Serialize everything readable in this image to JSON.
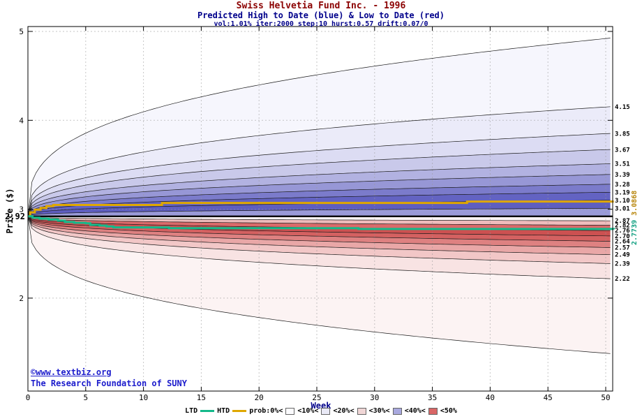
{
  "header": {
    "title": "Swiss Helvetia Fund Inc. - 1996",
    "subtitle": "Predicted High to Date (blue) &  Low to Date (red)",
    "params": "vol:1.01% iter:2000 step:10 hurst:0.57 drift:0.07/0"
  },
  "watermark": {
    "line1": "©www.textbiz.org",
    "line2": "The Research Foundation of SUNY",
    "color": "#1c1ccc"
  },
  "legend": {
    "items": [
      {
        "type": "text",
        "label": "LTD"
      },
      {
        "type": "line",
        "name": "ltd-line-swatch",
        "color": "#14b98a"
      },
      {
        "type": "text",
        "label": "HTD"
      },
      {
        "type": "line",
        "name": "htd-line-swatch",
        "color": "#dfa700"
      },
      {
        "type": "text",
        "label": "prob:0%<"
      },
      {
        "type": "swatch",
        "name": "prob-swatch-10",
        "color": "#fbfbfe"
      },
      {
        "type": "text",
        "label": "<10%<"
      },
      {
        "type": "swatch",
        "name": "prob-swatch-20",
        "color": "#e9e9f6"
      },
      {
        "type": "text",
        "label": "<20%<"
      },
      {
        "type": "swatch",
        "name": "prob-swatch-30",
        "color": "#f0d6d6"
      },
      {
        "type": "text",
        "label": "<30%<"
      },
      {
        "type": "swatch",
        "name": "prob-swatch-40",
        "color": "#a9a9df"
      },
      {
        "type": "text",
        "label": "<40%<"
      },
      {
        "type": "swatch",
        "name": "prob-swatch-50",
        "color": "#d96666"
      },
      {
        "type": "text",
        "label": "<50%"
      }
    ]
  },
  "chart_data": {
    "type": "area",
    "title": "Swiss Helvetia Fund Inc. - 1996",
    "subtitle": "Predicted High to Date (blue) & Low to Date (red)",
    "x": {
      "label": "Week",
      "min": 0,
      "max": 50,
      "ticks": [
        0,
        5,
        10,
        15,
        20,
        25,
        30,
        35,
        40,
        45,
        50
      ]
    },
    "y": {
      "label": "Price ($)",
      "ticks": [
        2,
        3,
        4,
        5
      ],
      "view_min": 0.95,
      "view_max": 5.06
    },
    "start_price": 2.92,
    "start_price_label": "2.92",
    "curve_power": 0.33,
    "grid": true,
    "high_fan": {
      "theme": "blue",
      "envelope_end": 4.92,
      "boundary_ends": [
        4.15,
        3.85,
        3.67,
        3.51,
        3.39,
        3.28,
        3.19,
        3.1,
        3.01
      ],
      "boundary_labels": [
        "4.15",
        "3.85",
        "3.67",
        "3.51",
        "3.39",
        "3.28",
        "3.19",
        "3.10",
        "3.01"
      ],
      "band_colors": [
        "#f6f6fd",
        "#ebebf9",
        "#dcdcf3",
        "#c9c9ea",
        "#b2b2e1",
        "#9797d6",
        "#7b7bcb",
        "#6363c2",
        "#5e5ec0",
        "#9a9ad8"
      ]
    },
    "low_fan": {
      "theme": "red",
      "envelope_end": 1.38,
      "boundary_ends": [
        2.87,
        2.82,
        2.76,
        2.7,
        2.64,
        2.57,
        2.49,
        2.39,
        2.22
      ],
      "boundary_labels": [
        "2.87",
        "2.82",
        "2.76",
        "2.70",
        "2.64",
        "2.57",
        "2.49",
        "2.39",
        "2.22"
      ],
      "band_colors": [
        "#fcf4f4",
        "#eebcbc",
        "#da6a6a",
        "#cc5151",
        "#d46161",
        "#de8181",
        "#e9a7a7",
        "#f2c7c7",
        "#f8e3e3",
        "#fcf3f3"
      ]
    },
    "htd_line": {
      "name": "HTD",
      "color": "#dfa700",
      "final_value": 3.0868,
      "final_label": "3.0868",
      "steps": [
        [
          0,
          2.92
        ],
        [
          0.2,
          2.965
        ],
        [
          0.6,
          2.995
        ],
        [
          1.1,
          3.015
        ],
        [
          1.6,
          3.035
        ],
        [
          2.2,
          3.048
        ],
        [
          11.2,
          3.048
        ],
        [
          11.6,
          3.071
        ],
        [
          37.6,
          3.071
        ],
        [
          38.0,
          3.0868
        ],
        [
          50.7,
          3.0868
        ]
      ]
    },
    "ltd_line": {
      "name": "LTD",
      "color": "#14b98a",
      "final_value": 2.7739,
      "final_label": "2.7739",
      "steps": [
        [
          0,
          2.92
        ],
        [
          0.4,
          2.904
        ],
        [
          1.0,
          2.894
        ],
        [
          1.8,
          2.884
        ],
        [
          2.6,
          2.872
        ],
        [
          3.2,
          2.856
        ],
        [
          4.0,
          2.848
        ],
        [
          5.0,
          2.842
        ],
        [
          5.4,
          2.824
        ],
        [
          6.2,
          2.816
        ],
        [
          6.8,
          2.806
        ],
        [
          7.4,
          2.796
        ],
        [
          11.6,
          2.796
        ],
        [
          12.2,
          2.787
        ],
        [
          28.0,
          2.787
        ],
        [
          28.6,
          2.778
        ],
        [
          50.7,
          2.7739
        ]
      ]
    },
    "center_line_color": "#000000"
  }
}
